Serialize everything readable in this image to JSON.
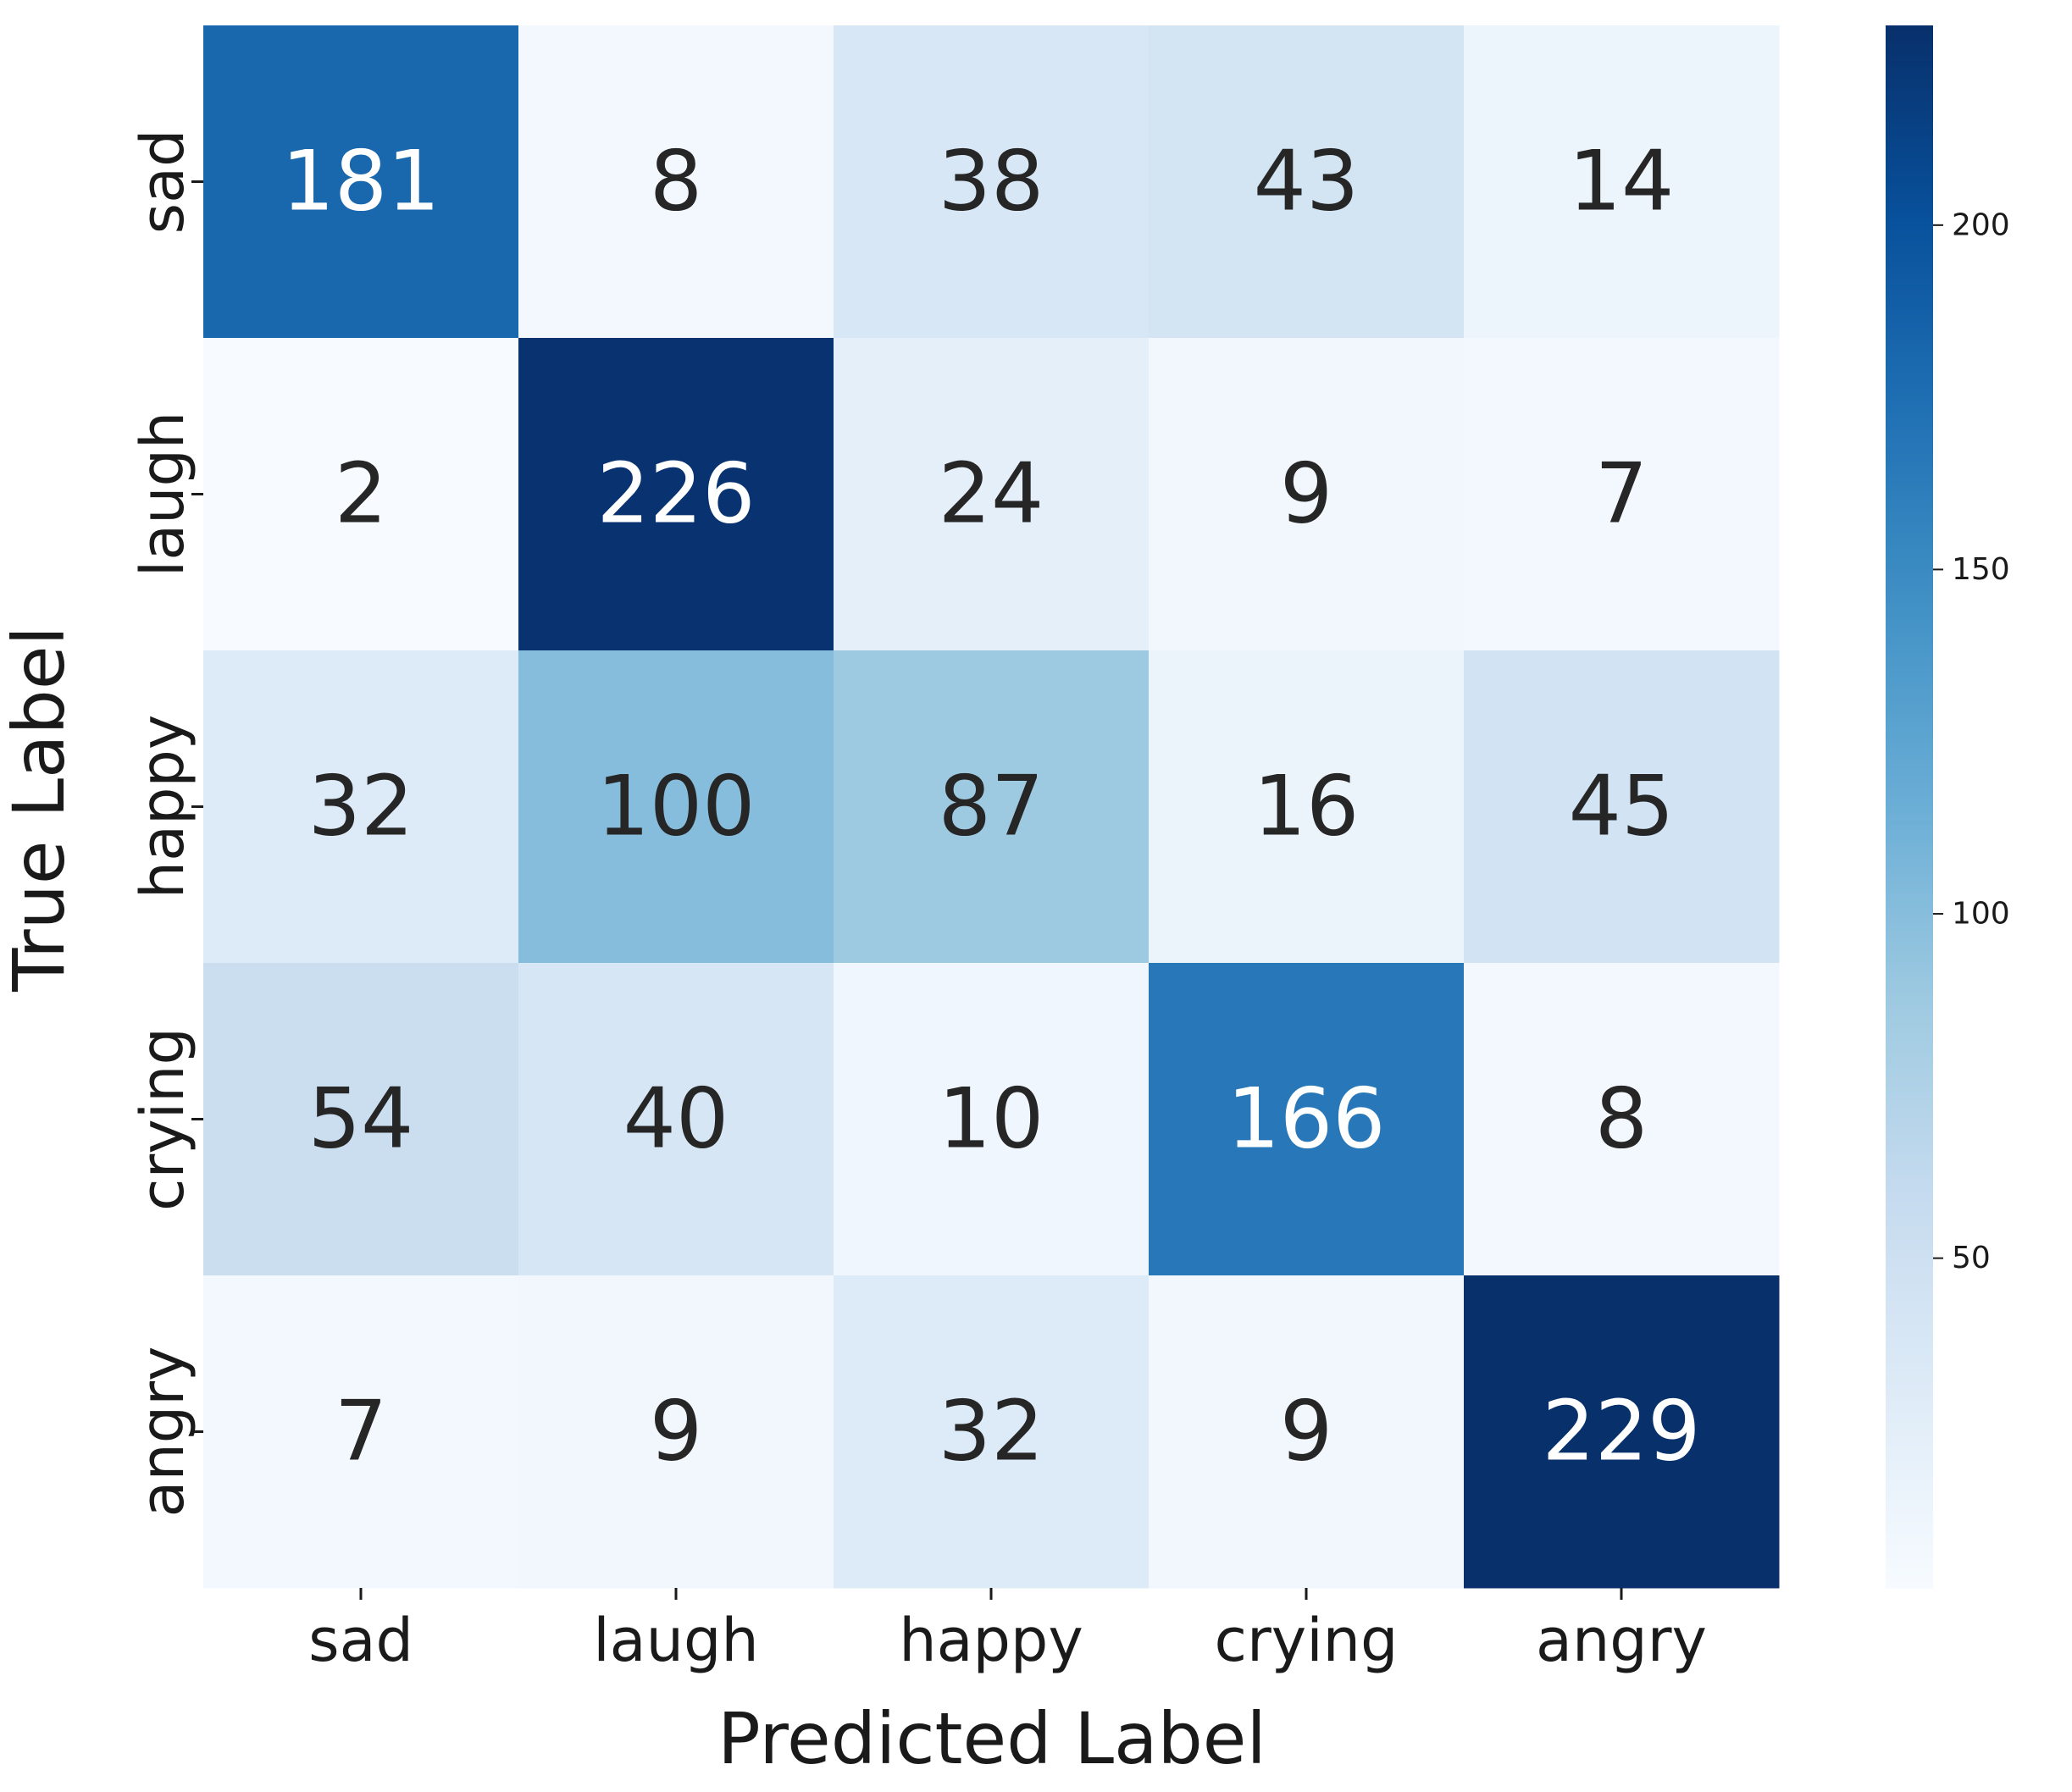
{
  "chart_data": {
    "type": "heatmap",
    "title": "",
    "xlabel": "Predicted Label",
    "ylabel": "True Label",
    "x_categories": [
      "sad",
      "laugh",
      "happy",
      "crying",
      "angry"
    ],
    "y_categories": [
      "sad",
      "laugh",
      "happy",
      "crying",
      "angry"
    ],
    "values": [
      [
        181,
        8,
        38,
        43,
        14
      ],
      [
        2,
        226,
        24,
        9,
        7
      ],
      [
        32,
        100,
        87,
        16,
        45
      ],
      [
        54,
        40,
        10,
        166,
        8
      ],
      [
        7,
        9,
        32,
        9,
        229
      ]
    ],
    "colormap": "Blues",
    "colorbar": {
      "min": 2,
      "max": 229,
      "ticks": [
        50,
        100,
        150,
        200
      ]
    }
  }
}
